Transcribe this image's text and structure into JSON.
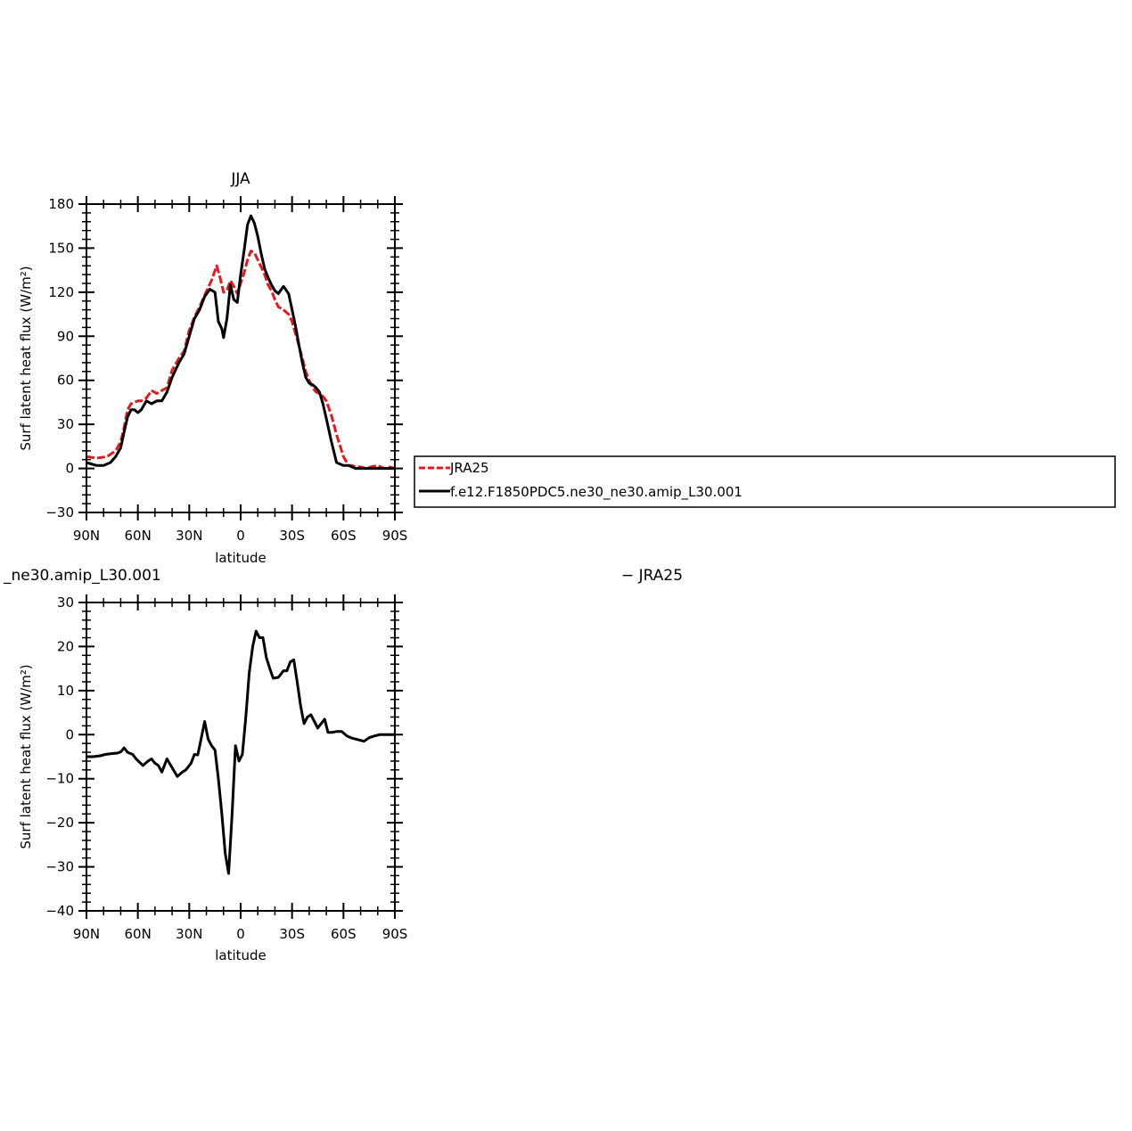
{
  "chart_data": [
    {
      "type": "line",
      "title": "JJA",
      "xlabel": "latitude",
      "ylabel": "Surf latent heat flux (W/m²)",
      "xlim": [
        90,
        -90
      ],
      "ylim": [
        -30,
        180
      ],
      "xticks": [
        90,
        60,
        30,
        0,
        -30,
        -60,
        -90
      ],
      "xtick_labels": [
        "90N",
        "60N",
        "30N",
        "0",
        "30S",
        "60S",
        "90S"
      ],
      "yticks": [
        -30,
        0,
        30,
        60,
        90,
        120,
        150,
        180
      ],
      "ytick_labels": [
        "−30",
        "0",
        "30",
        "60",
        "90",
        "120",
        "150",
        "180"
      ],
      "legend": {
        "placement": "right",
        "entries": [
          "JRA25",
          "f.e12.F1850PDC5.ne30_ne30.amip_L30.001"
        ]
      },
      "series": [
        {
          "name": "JRA25",
          "color": "#e8171e",
          "dash": true,
          "x": [
            90,
            84,
            78,
            73,
            70,
            68,
            66,
            64,
            62,
            60,
            58,
            55,
            52,
            49,
            46,
            43,
            40,
            36,
            33,
            30,
            27,
            24,
            21,
            17,
            14,
            12,
            10,
            8,
            6,
            4,
            2,
            0,
            -2,
            -4,
            -6,
            -8,
            -10,
            -12,
            -14,
            -16,
            -18,
            -20,
            -22,
            -25,
            -28,
            -30,
            -33,
            -36,
            -38,
            -40,
            -42,
            -44,
            -46,
            -48,
            -50,
            -53,
            -56,
            -60,
            -63,
            -65,
            -67,
            -70,
            -73,
            -76,
            -80,
            -84,
            -87,
            -90
          ],
          "y": [
            8,
            7,
            8,
            12,
            18,
            28,
            40,
            44,
            45,
            46,
            46,
            48,
            53,
            51,
            53,
            55,
            67,
            75,
            80,
            94,
            103,
            110,
            118,
            128,
            138,
            130,
            120,
            121,
            128,
            124,
            119,
            126,
            133,
            142,
            148,
            147,
            142,
            137,
            132,
            125,
            121,
            115,
            110,
            108,
            105,
            100,
            88,
            75,
            66,
            60,
            55,
            52,
            51,
            49,
            46,
            36,
            23,
            8,
            2,
            2,
            1,
            1,
            0,
            1,
            2,
            0,
            1,
            0
          ]
        },
        {
          "name": "f.e12.F1850PDC5.ne30_ne30.amip_L30.001",
          "color": "#000000",
          "dash": false,
          "x": [
            90,
            84,
            80,
            76,
            73,
            70,
            68,
            66,
            64,
            62,
            60,
            58,
            55,
            52,
            49,
            46,
            43,
            40,
            36,
            33,
            30,
            27,
            24,
            21,
            18,
            15,
            13,
            11,
            10,
            8,
            6,
            4,
            2,
            0,
            -2,
            -4,
            -6,
            -8,
            -10,
            -12,
            -14,
            -16,
            -18,
            -20,
            -22,
            -25,
            -28,
            -30,
            -32,
            -34,
            -36,
            -38,
            -40,
            -42,
            -44,
            -46,
            -48,
            -50,
            -53,
            -56,
            -60,
            -63,
            -65,
            -67,
            -70,
            -73,
            -76,
            -80,
            -84,
            -87,
            -90
          ],
          "y": [
            4,
            2,
            2,
            4,
            8,
            14,
            25,
            35,
            40,
            40,
            38,
            40,
            46,
            44,
            46,
            46,
            52,
            62,
            72,
            78,
            90,
            102,
            108,
            117,
            122,
            120,
            100,
            95,
            89,
            102,
            125,
            115,
            113,
            132,
            148,
            166,
            172,
            167,
            158,
            146,
            136,
            130,
            125,
            121,
            119,
            124,
            119,
            108,
            97,
            84,
            72,
            62,
            58,
            57,
            55,
            52,
            44,
            34,
            18,
            4,
            2,
            2,
            1,
            0,
            0,
            0,
            0,
            0,
            0,
            0,
            0
          ]
        }
      ]
    },
    {
      "type": "line",
      "title": "_ne30.amip_L30.001",
      "title_right": "− JRA25",
      "xlabel": "latitude",
      "ylabel": "Surf latent heat flux (W/m²)",
      "xlim": [
        90,
        -90
      ],
      "ylim": [
        -40,
        30
      ],
      "xticks": [
        90,
        60,
        30,
        0,
        -30,
        -60,
        -90
      ],
      "xtick_labels": [
        "90N",
        "60N",
        "30N",
        "0",
        "30S",
        "60S",
        "90S"
      ],
      "yticks": [
        -40,
        -30,
        -20,
        -10,
        0,
        10,
        20,
        30
      ],
      "ytick_labels": [
        "−40",
        "−30",
        "−20",
        "−10",
        "0",
        "10",
        "20",
        "30"
      ],
      "series": [
        {
          "color": "#000000",
          "dash": false,
          "x": [
            90,
            86,
            82,
            79,
            75,
            72,
            70,
            68,
            66,
            63,
            61,
            57,
            54,
            52,
            50,
            48,
            46,
            43,
            40,
            37,
            34,
            32,
            29,
            27,
            25,
            23,
            21,
            19,
            17,
            15,
            13,
            11,
            9,
            7,
            5,
            3,
            1,
            -1,
            -3,
            -5,
            -7,
            -9,
            -11,
            -13,
            -15,
            -17,
            -19,
            -22,
            -25,
            -27,
            -29,
            -31,
            -33,
            -35,
            -37,
            -39,
            -41,
            -43,
            -45,
            -47,
            -49,
            -51,
            -53,
            -56,
            -59,
            -62,
            -65,
            -67,
            -69,
            -72,
            -75,
            -78,
            -81,
            -84,
            -86,
            -88,
            -90
          ],
          "y": [
            -5,
            -5,
            -4.8,
            -4.5,
            -4.3,
            -4.2,
            -3.9,
            -3,
            -4,
            -4.5,
            -5.5,
            -7,
            -6,
            -5.5,
            -6.5,
            -7,
            -8.5,
            -5.5,
            -7.5,
            -9.5,
            -8.5,
            -8,
            -6.5,
            -4.5,
            -4.6,
            -0.8,
            3,
            -1,
            -2.5,
            -3.5,
            -10,
            -18,
            -27,
            -31.5,
            -18,
            -2.5,
            -6,
            -4.5,
            4,
            14,
            20,
            23.5,
            22,
            22,
            17.5,
            15,
            12.8,
            13,
            14.5,
            14.5,
            16.5,
            17,
            12,
            6.5,
            2.5,
            4,
            4.5,
            3,
            1.5,
            2.5,
            3.5,
            0.5,
            0.5,
            0.7,
            0.7,
            -0.3,
            -0.8,
            -1,
            -1.2,
            -1.5,
            -0.7,
            -0.3,
            0,
            0,
            0,
            0,
            0
          ]
        }
      ]
    }
  ]
}
